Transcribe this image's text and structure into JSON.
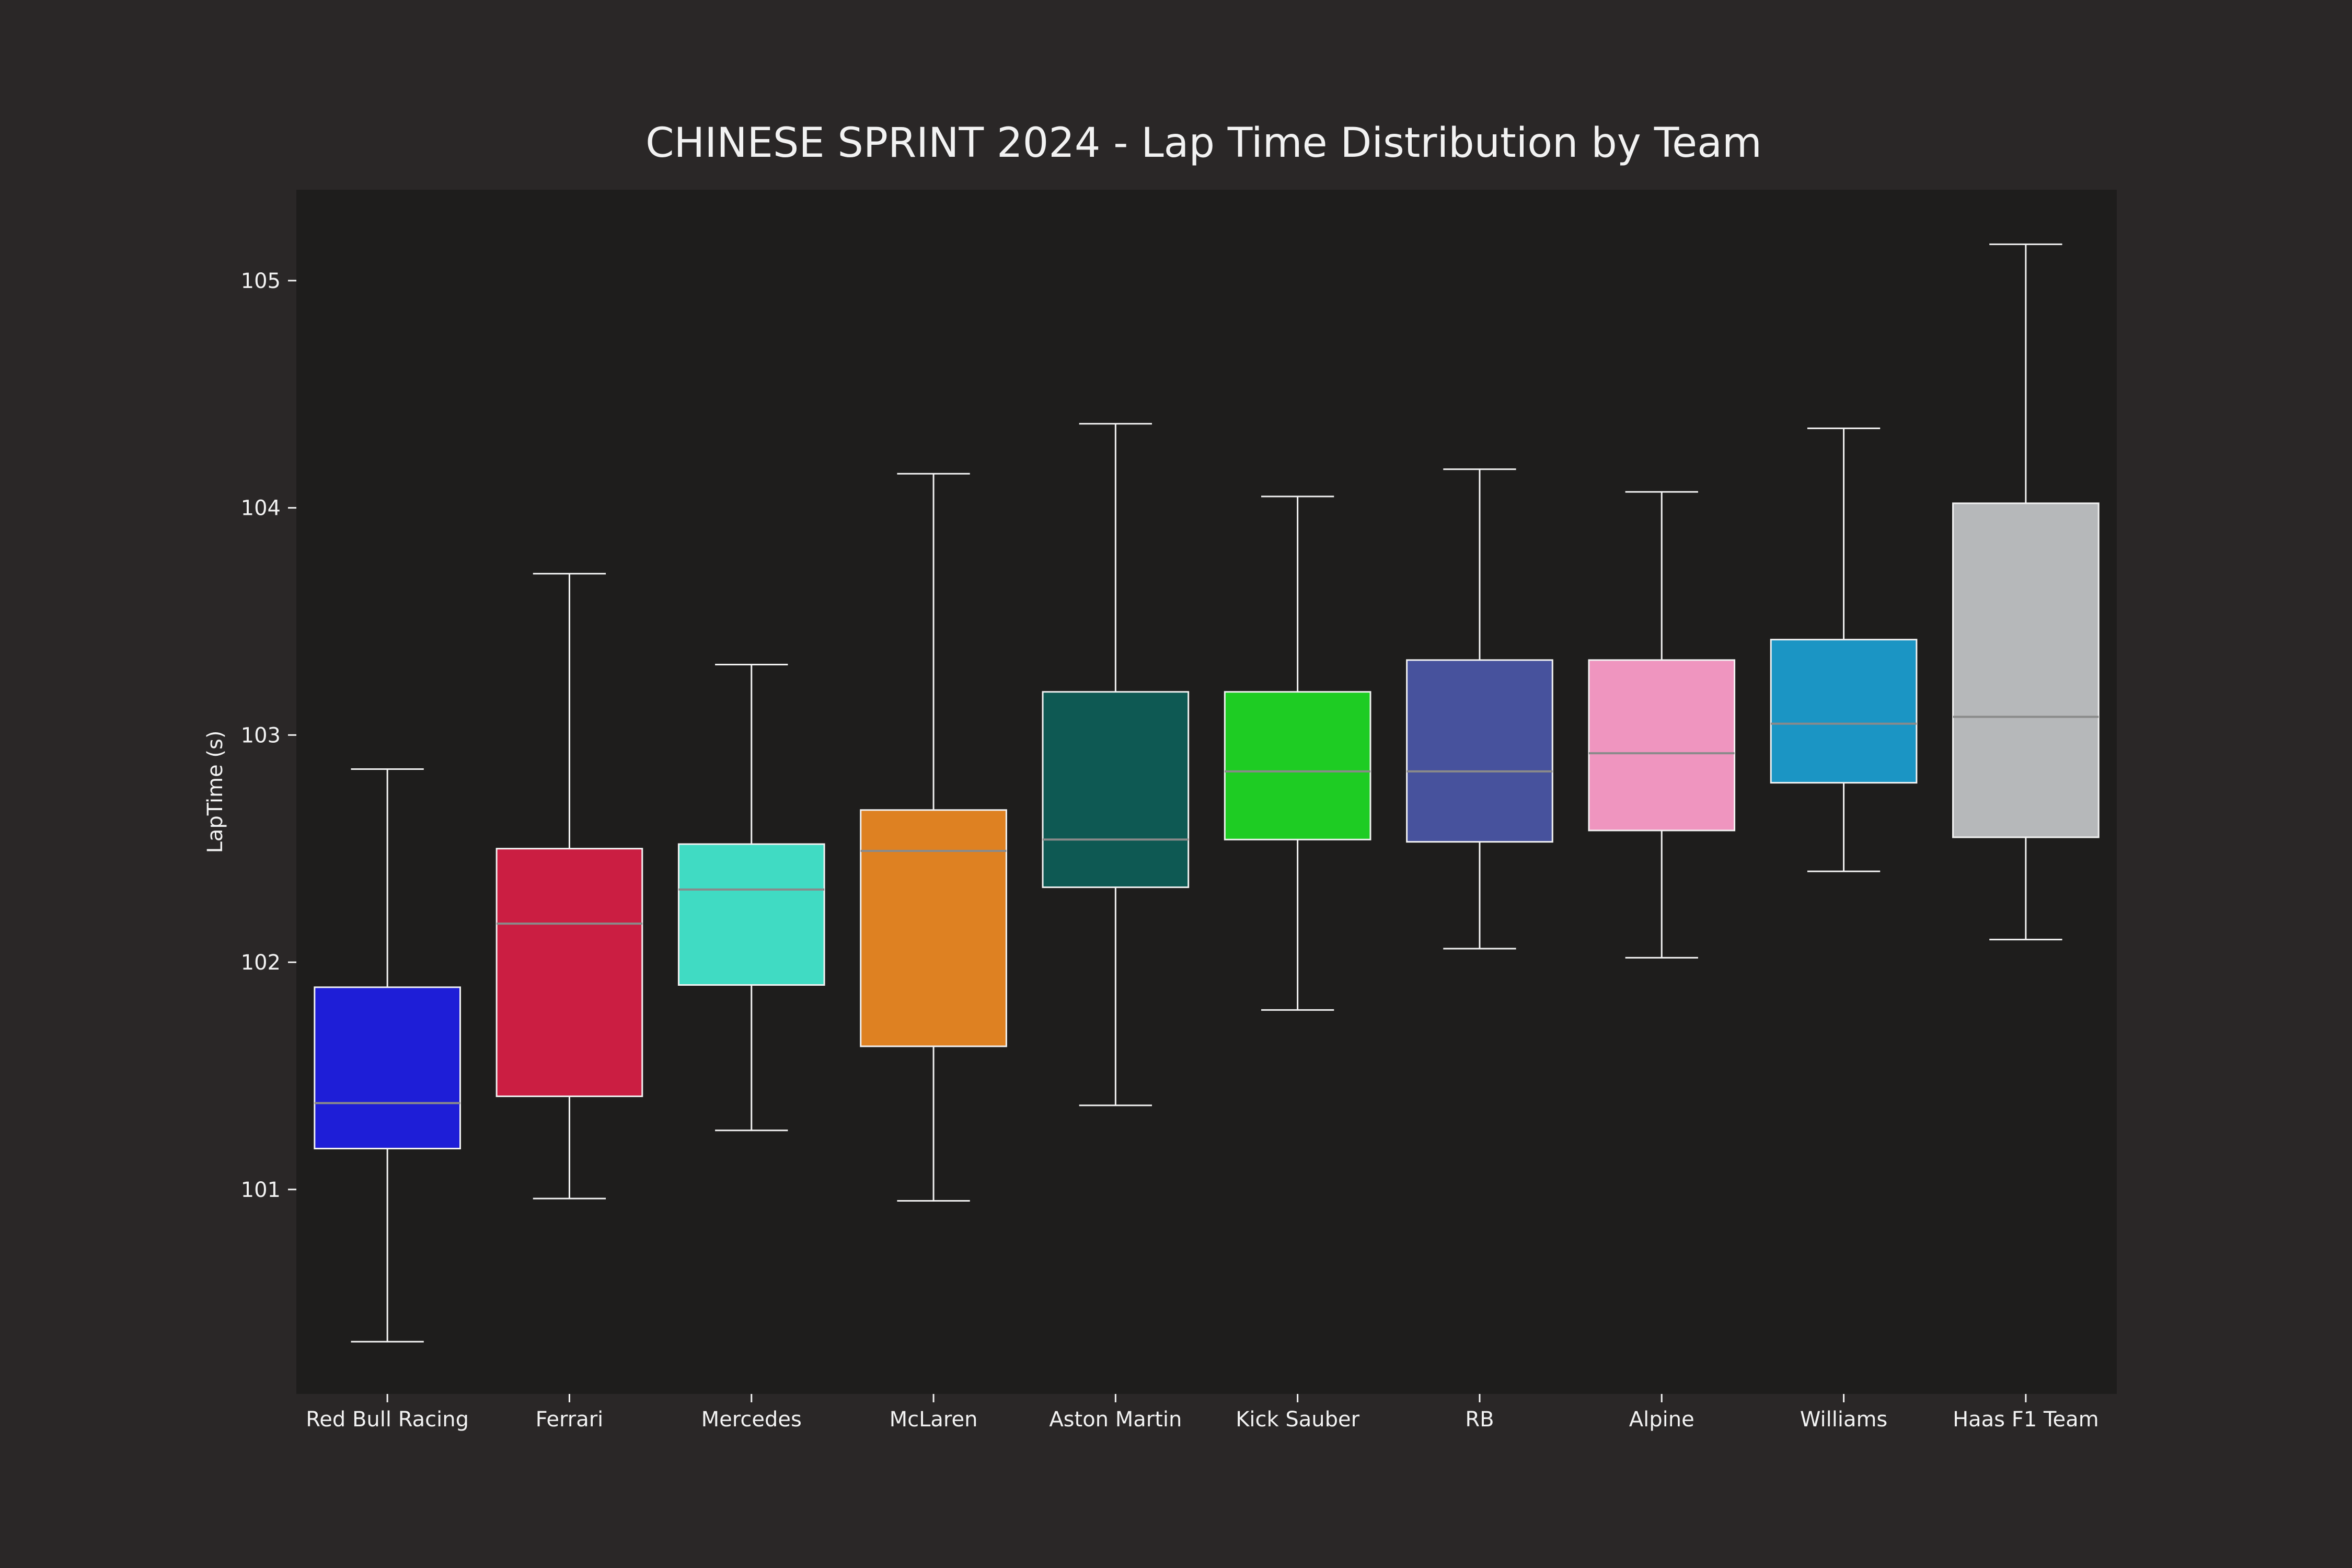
{
  "chart_data": {
    "type": "box",
    "title": "CHINESE SPRINT 2024 - Lap Time Distribution by Team",
    "xlabel": "",
    "ylabel": "LapTime (s)",
    "ylim": [
      100.1,
      105.4
    ],
    "yticks": [
      101,
      102,
      103,
      104,
      105
    ],
    "grid": false,
    "categories": [
      "Red Bull Racing",
      "Ferrari",
      "Mercedes",
      "McLaren",
      "Aston Martin",
      "Kick Sauber",
      "RB",
      "Alpine",
      "Williams",
      "Haas F1 Team"
    ],
    "series": [
      {
        "values": [
          {
            "category": "Red Bull Racing",
            "whisker_low": 100.33,
            "q1": 101.18,
            "median": 101.38,
            "q3": 101.89,
            "whisker_high": 102.85,
            "color": "#1e1ed7"
          },
          {
            "category": "Ferrari",
            "whisker_low": 100.96,
            "q1": 101.41,
            "median": 102.17,
            "q3": 102.5,
            "whisker_high": 103.71,
            "color": "#cb1e42"
          },
          {
            "category": "Mercedes",
            "whisker_low": 101.26,
            "q1": 101.9,
            "median": 102.32,
            "q3": 102.52,
            "whisker_high": 103.31,
            "color": "#40dbc3"
          },
          {
            "category": "McLaren",
            "whisker_low": 100.95,
            "q1": 101.63,
            "median": 102.49,
            "q3": 102.67,
            "whisker_high": 104.15,
            "color": "#de8122"
          },
          {
            "category": "Aston Martin",
            "whisker_low": 101.37,
            "q1": 102.33,
            "median": 102.54,
            "q3": 103.19,
            "whisker_high": 104.37,
            "color": "#0e5953"
          },
          {
            "category": "Kick Sauber",
            "whisker_low": 101.79,
            "q1": 102.54,
            "median": 102.84,
            "q3": 103.19,
            "whisker_high": 104.05,
            "color": "#1ecc23"
          },
          {
            "category": "RB",
            "whisker_low": 102.06,
            "q1": 102.53,
            "median": 102.84,
            "q3": 103.33,
            "whisker_high": 104.17,
            "color": "#47529d"
          },
          {
            "category": "Alpine",
            "whisker_low": 102.02,
            "q1": 102.58,
            "median": 102.92,
            "q3": 103.33,
            "whisker_high": 104.07,
            "color": "#ef95bf"
          },
          {
            "category": "Williams",
            "whisker_low": 102.4,
            "q1": 102.79,
            "median": 103.05,
            "q3": 103.42,
            "whisker_high": 104.35,
            "color": "#1b95c4"
          },
          {
            "category": "Haas F1 Team",
            "whisker_low": 102.1,
            "q1": 102.55,
            "median": 103.08,
            "q3": 104.02,
            "whisker_high": 105.16,
            "color": "#b6b8ba"
          }
        ]
      }
    ]
  }
}
